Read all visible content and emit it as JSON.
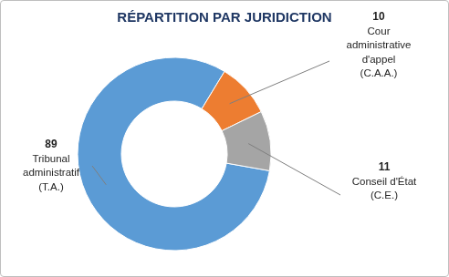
{
  "chart_data": {
    "type": "donut",
    "title": "RÉPARTITION PAR JURIDICTION",
    "categories": [
      "Tribunal administratif (T.A.)",
      "Cour administrative d'appel (C.A.A.)",
      "Conseil d'État (C.E.)"
    ],
    "values": [
      89,
      10,
      11
    ],
    "colors": [
      "#5b9bd5",
      "#ed7d31",
      "#a5a5a5"
    ],
    "data_labels": true
  }
}
